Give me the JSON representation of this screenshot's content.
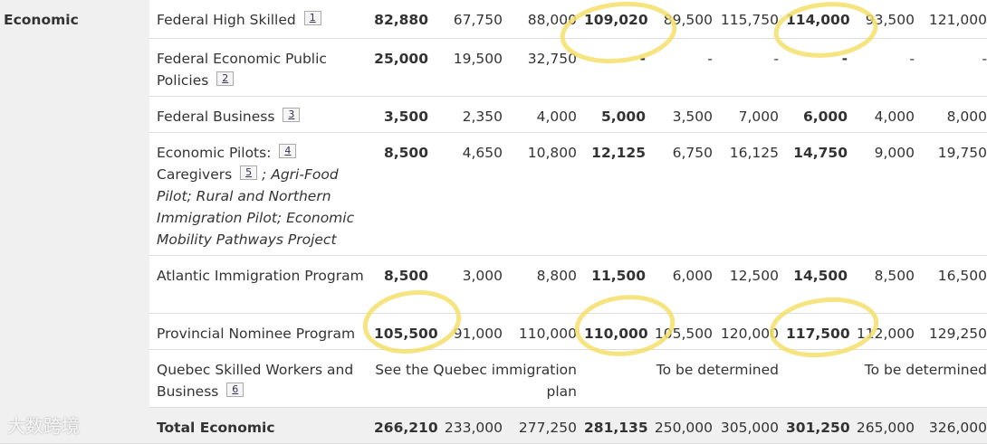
{
  "section": "Economic",
  "watermark": "大数跨境",
  "rows": [
    {
      "name": [
        {
          "text": "Federal High Skilled"
        },
        {
          "ref": "1"
        }
      ],
      "cells": [
        {
          "text": "82,880"
        },
        {
          "text": "67,750"
        },
        {
          "text": "88,000"
        },
        {
          "text": "109,020"
        },
        {
          "text": "89,500"
        },
        {
          "text": "115,750"
        },
        {
          "text": "114,000"
        },
        {
          "text": "93,500"
        },
        {
          "text": "121,000"
        }
      ]
    },
    {
      "name": [
        {
          "text": "Federal Economic Public Policies"
        },
        {
          "ref": "2"
        }
      ],
      "cells": [
        {
          "text": "25,000"
        },
        {
          "text": "19,500"
        },
        {
          "text": "32,750"
        },
        {
          "text": "-"
        },
        {
          "text": "-"
        },
        {
          "text": "-"
        },
        {
          "text": "-"
        },
        {
          "text": "-"
        },
        {
          "text": "-"
        }
      ]
    },
    {
      "name": [
        {
          "text": "Federal Business"
        },
        {
          "ref": "3"
        }
      ],
      "cells": [
        {
          "text": "3,500"
        },
        {
          "text": "2,350"
        },
        {
          "text": "4,000"
        },
        {
          "text": "5,000"
        },
        {
          "text": "3,500"
        },
        {
          "text": "7,000"
        },
        {
          "text": "6,000"
        },
        {
          "text": "4,000"
        },
        {
          "text": "8,000"
        }
      ]
    },
    {
      "name": [
        {
          "text": "Economic Pilots:"
        },
        {
          "ref": "4"
        },
        {
          "text": "Caregivers"
        },
        {
          "ref": "5"
        },
        {
          "text": "; Agri-Food Pilot; Rural and Northern Immigration Pilot; Economic Mobility Pathways Project",
          "italic": true
        }
      ],
      "cells": [
        {
          "text": "8,500"
        },
        {
          "text": "4,650"
        },
        {
          "text": "10,800"
        },
        {
          "text": "12,125"
        },
        {
          "text": "6,750"
        },
        {
          "text": "16,125"
        },
        {
          "text": "14,750"
        },
        {
          "text": "9,000"
        },
        {
          "text": "19,750"
        }
      ]
    },
    {
      "name": [
        {
          "text": "Atlantic Immigration Program"
        }
      ],
      "cells": [
        {
          "text": "8,500"
        },
        {
          "text": "3,000"
        },
        {
          "text": "8,800"
        },
        {
          "text": "11,500"
        },
        {
          "text": "6,000"
        },
        {
          "text": "12,500"
        },
        {
          "text": "14,500"
        },
        {
          "text": "8,500"
        },
        {
          "text": "16,500"
        }
      ]
    },
    {
      "name": [
        {
          "text": "Provincial Nominee Program"
        }
      ],
      "cells": [
        {
          "text": "105,500"
        },
        {
          "text": "91,000"
        },
        {
          "text": "110,000"
        },
        {
          "text": "110,000"
        },
        {
          "text": "105,500"
        },
        {
          "text": "120,000"
        },
        {
          "text": "117,500"
        },
        {
          "text": "112,000"
        },
        {
          "text": "129,250"
        }
      ]
    },
    {
      "name": [
        {
          "text": "Quebec Skilled Workers and Business"
        },
        {
          "ref": "6"
        }
      ],
      "cells": [
        {
          "text": "See the Quebec immigration plan",
          "span": 3
        },
        {
          "text": "To be determined",
          "span": 3
        },
        {
          "text": "To be determined",
          "span": 3
        }
      ]
    },
    {
      "name": [
        {
          "text": "Total Economic"
        }
      ],
      "total": true,
      "cells": [
        {
          "text": "266,210"
        },
        {
          "text": "233,000"
        },
        {
          "text": "277,250"
        },
        {
          "text": "281,135"
        },
        {
          "text": "250,000"
        },
        {
          "text": "305,000"
        },
        {
          "text": "301,250"
        },
        {
          "text": "265,000"
        },
        {
          "text": "326,000"
        }
      ]
    }
  ]
}
